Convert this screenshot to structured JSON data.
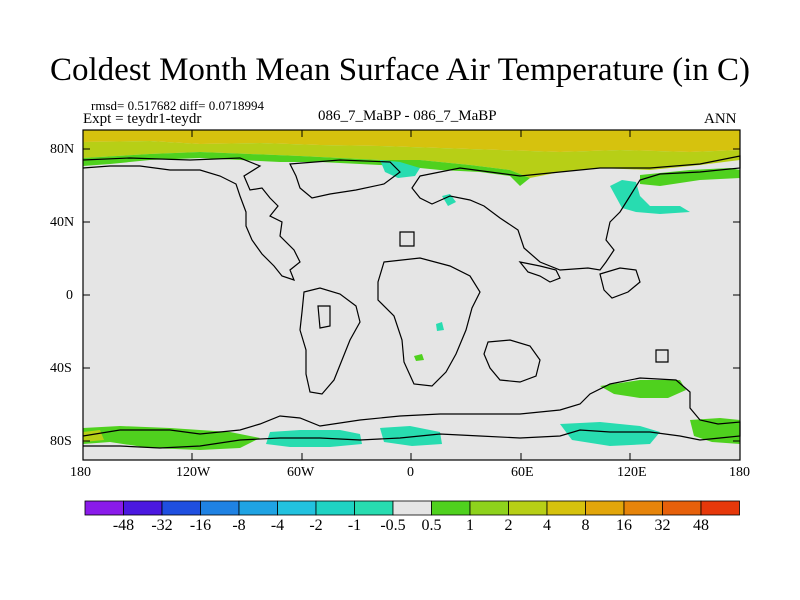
{
  "title": "Coldest Month Mean Surface Air Temperature (in C)",
  "stats": "rmsd= 0.517682 diff= 0.0718994",
  "experiment": "Expt = teydr1-teydr",
  "center_label": "086_7_MaBP - 086_7_MaBP",
  "period": "ANN",
  "lat_ticks": [
    "80N",
    "40N",
    "0",
    "40S",
    "80S"
  ],
  "lon_ticks": [
    "180",
    "120W",
    "60W",
    "0",
    "60E",
    "120E",
    "180"
  ],
  "colorbar": {
    "labels": [
      "-48",
      "-32",
      "-16",
      "-8",
      "-4",
      "-2",
      "-1",
      "-0.5",
      "0.5",
      "1",
      "2",
      "4",
      "8",
      "16",
      "32",
      "48"
    ],
    "colors": [
      "#8a1bea",
      "#4b18e0",
      "#1f4fe0",
      "#1f82e3",
      "#1fa3e3",
      "#22c2df",
      "#1fd3c3",
      "#28dcb0",
      "#e5e5e5",
      "#4fd11e",
      "#8ed21c",
      "#b7cf16",
      "#d6c20e",
      "#e2a60a",
      "#e6840a",
      "#e6600a",
      "#e6380a"
    ]
  }
}
